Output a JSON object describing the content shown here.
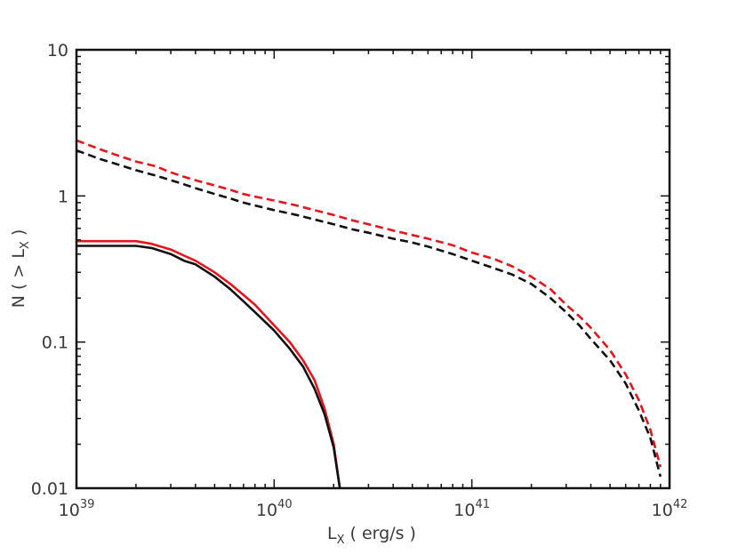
{
  "chart_data": {
    "type": "line",
    "xlabel": {
      "main": "L",
      "sub": "X",
      "rest": " ( erg/s )"
    },
    "ylabel": {
      "pre": "N ( > L",
      "sub": "X",
      "post": " )"
    },
    "x_scale": "log",
    "y_scale": "log",
    "xlim": [
      1e+39,
      1e+42
    ],
    "ylim": [
      0.01,
      10
    ],
    "x_ticks": [
      {
        "value": 1e+39,
        "base": "10",
        "exp": "39"
      },
      {
        "value": 1e+40,
        "base": "10",
        "exp": "40"
      },
      {
        "value": 1e+41,
        "base": "10",
        "exp": "41"
      },
      {
        "value": 1e+42,
        "base": "10",
        "exp": "42"
      }
    ],
    "y_ticks": [
      {
        "value": 10,
        "label": "10"
      },
      {
        "value": 1,
        "label": "1"
      },
      {
        "value": 0.1,
        "label": "0.1"
      },
      {
        "value": 0.01,
        "label": "0.01"
      }
    ],
    "grid": false,
    "legend": "none",
    "series": [
      {
        "color": "#e8141c",
        "style": "dashed",
        "points": [
          [
            1e+39,
            2.4
          ],
          [
            1.3e+39,
            2.1
          ],
          [
            1.6e+39,
            1.9
          ],
          [
            2e+39,
            1.72
          ],
          [
            2.5e+39,
            1.6
          ],
          [
            3e+39,
            1.45
          ],
          [
            3.5e+39,
            1.35
          ],
          [
            4e+39,
            1.28
          ],
          [
            5e+39,
            1.18
          ],
          [
            6e+39,
            1.1
          ],
          [
            7e+39,
            1.03
          ],
          [
            8e+39,
            0.99
          ],
          [
            1e+40,
            0.93
          ],
          [
            1.3e+40,
            0.86
          ],
          [
            1.6e+40,
            0.8
          ],
          [
            2e+40,
            0.74
          ],
          [
            2.5e+40,
            0.68
          ],
          [
            3e+40,
            0.64
          ],
          [
            4e+40,
            0.58
          ],
          [
            5e+40,
            0.54
          ],
          [
            6e+40,
            0.51
          ],
          [
            8e+40,
            0.46
          ],
          [
            1e+41,
            0.41
          ],
          [
            1.3e+41,
            0.37
          ],
          [
            1.6e+41,
            0.33
          ],
          [
            2e+41,
            0.28
          ],
          [
            2.5e+41,
            0.23
          ],
          [
            3e+41,
            0.18
          ],
          [
            3.5e+41,
            0.15
          ],
          [
            4e+41,
            0.125
          ],
          [
            5e+41,
            0.088
          ],
          [
            6e+41,
            0.06
          ],
          [
            7e+41,
            0.04
          ],
          [
            8e+41,
            0.025
          ],
          [
            9e+41,
            0.014
          ]
        ]
      },
      {
        "color": "#111111",
        "style": "dashed",
        "points": [
          [
            1e+39,
            2.05
          ],
          [
            1.3e+39,
            1.8
          ],
          [
            1.6e+39,
            1.65
          ],
          [
            2e+39,
            1.5
          ],
          [
            2.5e+39,
            1.38
          ],
          [
            3e+39,
            1.28
          ],
          [
            3.5e+39,
            1.2
          ],
          [
            4e+39,
            1.13
          ],
          [
            5e+39,
            1.03
          ],
          [
            6e+39,
            0.96
          ],
          [
            7e+39,
            0.9
          ],
          [
            8e+39,
            0.86
          ],
          [
            1e+40,
            0.8
          ],
          [
            1.3e+40,
            0.74
          ],
          [
            1.6e+40,
            0.69
          ],
          [
            2e+40,
            0.64
          ],
          [
            2.5e+40,
            0.59
          ],
          [
            3e+40,
            0.56
          ],
          [
            4e+40,
            0.51
          ],
          [
            5e+40,
            0.48
          ],
          [
            6e+40,
            0.45
          ],
          [
            8e+40,
            0.4
          ],
          [
            1e+41,
            0.36
          ],
          [
            1.3e+41,
            0.32
          ],
          [
            1.6e+41,
            0.29
          ],
          [
            2e+41,
            0.25
          ],
          [
            2.5e+41,
            0.2
          ],
          [
            3e+41,
            0.16
          ],
          [
            3.5e+41,
            0.13
          ],
          [
            4e+41,
            0.105
          ],
          [
            5e+41,
            0.075
          ],
          [
            6e+41,
            0.052
          ],
          [
            7e+41,
            0.034
          ],
          [
            8e+41,
            0.022
          ],
          [
            9e+41,
            0.012
          ]
        ]
      },
      {
        "color": "#e8141c",
        "style": "solid",
        "points": [
          [
            1e+39,
            0.49
          ],
          [
            1.5e+39,
            0.49
          ],
          [
            2e+39,
            0.49
          ],
          [
            2.4e+39,
            0.47
          ],
          [
            3e+39,
            0.43
          ],
          [
            3.5e+39,
            0.39
          ],
          [
            4e+39,
            0.36
          ],
          [
            5e+39,
            0.3
          ],
          [
            6e+39,
            0.25
          ],
          [
            7e+39,
            0.21
          ],
          [
            8e+39,
            0.18
          ],
          [
            1e+40,
            0.13
          ],
          [
            1.2e+40,
            0.1
          ],
          [
            1.4e+40,
            0.075
          ],
          [
            1.6e+40,
            0.055
          ],
          [
            1.8e+40,
            0.035
          ],
          [
            2e+40,
            0.02
          ],
          [
            2.15e+40,
            0.01
          ]
        ]
      },
      {
        "color": "#111111",
        "style": "solid",
        "points": [
          [
            1e+39,
            0.455
          ],
          [
            1.5e+39,
            0.455
          ],
          [
            2e+39,
            0.455
          ],
          [
            2.4e+39,
            0.44
          ],
          [
            3e+39,
            0.4
          ],
          [
            3.5e+39,
            0.36
          ],
          [
            4e+39,
            0.34
          ],
          [
            5e+39,
            0.28
          ],
          [
            6e+39,
            0.23
          ],
          [
            7e+39,
            0.19
          ],
          [
            8e+39,
            0.16
          ],
          [
            1e+40,
            0.12
          ],
          [
            1.2e+40,
            0.09
          ],
          [
            1.4e+40,
            0.068
          ],
          [
            1.6e+40,
            0.048
          ],
          [
            1.8e+40,
            0.032
          ],
          [
            2e+40,
            0.019
          ],
          [
            2.15e+40,
            0.01
          ]
        ]
      }
    ]
  }
}
